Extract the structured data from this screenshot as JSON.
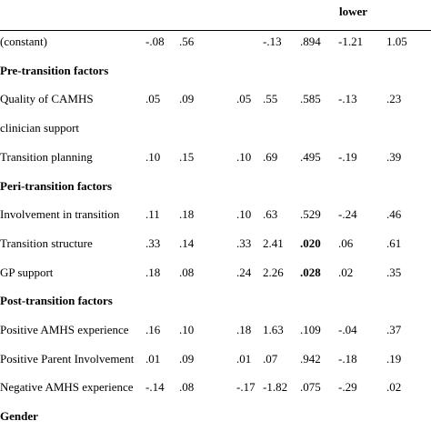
{
  "header": {
    "label": "lower"
  },
  "rows": [
    {
      "kind": "data",
      "label": "(constant)",
      "cells": [
        "-.08",
        ".56",
        null,
        "-.13",
        ".894",
        "-1.21",
        "1.05"
      ]
    },
    {
      "kind": "section",
      "label": "Pre-transition factors"
    },
    {
      "kind": "data",
      "label": "Quality of CAMHS clinician support",
      "cells": [
        ".05",
        ".09",
        ".05",
        ".55",
        ".585",
        "-.13",
        ".23"
      ]
    },
    {
      "kind": "data",
      "label": "Transition planning",
      "cells": [
        ".10",
        ".15",
        ".10",
        ".69",
        ".495",
        "-.19",
        ".39"
      ]
    },
    {
      "kind": "section",
      "label": "Peri-transition factors"
    },
    {
      "kind": "data",
      "label": "Involvement in transition",
      "cells": [
        ".11",
        ".18",
        ".10",
        ".63",
        ".529",
        "-.24",
        ".46"
      ]
    },
    {
      "kind": "data",
      "label": "Transition structure",
      "cells": [
        ".33",
        ".14",
        ".33",
        "2.41",
        ".020",
        ".06",
        ".61"
      ],
      "bold_cells": [
        4
      ]
    },
    {
      "kind": "data",
      "label": "GP support",
      "cells": [
        ".18",
        ".08",
        ".24",
        "2.26",
        ".028",
        ".02",
        ".35"
      ],
      "bold_cells": [
        4
      ]
    },
    {
      "kind": "section",
      "label": "Post-transition factors"
    },
    {
      "kind": "data",
      "label": "Positive AMHS experience",
      "cells": [
        ".16",
        ".10",
        ".18",
        "1.63",
        ".109",
        "-.04",
        ".37"
      ]
    },
    {
      "kind": "data",
      "label": "Positive Parent Involvement",
      "cells": [
        ".01",
        ".09",
        ".01",
        ".07",
        ".942",
        "-.18",
        ".19"
      ]
    },
    {
      "kind": "data",
      "label": "Negative AMHS experience",
      "cells": [
        "-.14",
        ".08",
        "-.17",
        "-1.82",
        ".075",
        "-.29",
        ".02"
      ]
    },
    {
      "kind": "section",
      "label": "Gender"
    }
  ]
}
